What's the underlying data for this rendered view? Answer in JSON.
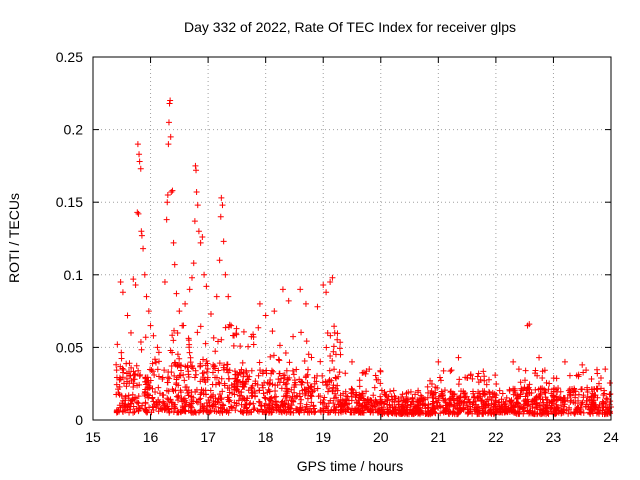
{
  "chart_data": {
    "type": "scatter",
    "title": "Day 332 of 2022, Rate Of TEC Index for receiver glps",
    "xlabel": "GPS time / hours",
    "ylabel": "ROTI / TECUs",
    "xlim": [
      15,
      24
    ],
    "ylim": [
      0,
      0.25
    ],
    "grid": true,
    "marker": "+",
    "color": "#ff0000",
    "x_ticks": [
      {
        "value": 15,
        "label": "15"
      },
      {
        "value": 16,
        "label": "16"
      },
      {
        "value": 17,
        "label": "17"
      },
      {
        "value": 18,
        "label": "18"
      },
      {
        "value": 19,
        "label": "19"
      },
      {
        "value": 20,
        "label": "20"
      },
      {
        "value": 21,
        "label": "21"
      },
      {
        "value": 22,
        "label": "22"
      },
      {
        "value": 23,
        "label": "23"
      },
      {
        "value": 24,
        "label": "24"
      }
    ],
    "y_ticks": [
      {
        "value": 0,
        "label": "0"
      },
      {
        "value": 0.05,
        "label": "0.05"
      },
      {
        "value": 0.1,
        "label": "0.1"
      },
      {
        "value": 0.15,
        "label": "0.15"
      },
      {
        "value": 0.2,
        "label": "0.2"
      },
      {
        "value": 0.25,
        "label": "0.25"
      }
    ],
    "envelope": [
      {
        "t0": 15.4,
        "t1": 16.0,
        "min": 0.005,
        "max": 0.06,
        "dense": 0.035
      },
      {
        "t0": 16.0,
        "t1": 17.4,
        "min": 0.005,
        "max": 0.07,
        "dense": 0.04
      },
      {
        "t0": 17.4,
        "t1": 19.3,
        "min": 0.005,
        "max": 0.065,
        "dense": 0.035
      },
      {
        "t0": 19.3,
        "t1": 20.0,
        "min": 0.005,
        "max": 0.035,
        "dense": 0.02
      },
      {
        "t0": 20.0,
        "t1": 20.8,
        "min": 0.004,
        "max": 0.022,
        "dense": 0.015
      },
      {
        "t0": 20.8,
        "t1": 22.0,
        "min": 0.004,
        "max": 0.035,
        "dense": 0.02
      },
      {
        "t0": 22.0,
        "t1": 22.3,
        "min": 0.005,
        "max": 0.025,
        "dense": 0.015
      },
      {
        "t0": 22.3,
        "t1": 24.0,
        "min": 0.004,
        "max": 0.035,
        "dense": 0.022
      }
    ],
    "outliers": [
      [
        15.48,
        0.095
      ],
      [
        15.52,
        0.088
      ],
      [
        15.6,
        0.072
      ],
      [
        15.66,
        0.06
      ],
      [
        15.7,
        0.097
      ],
      [
        15.74,
        0.093
      ],
      [
        15.77,
        0.143
      ],
      [
        15.79,
        0.142
      ],
      [
        15.78,
        0.19
      ],
      [
        15.8,
        0.183
      ],
      [
        15.81,
        0.178
      ],
      [
        15.83,
        0.173
      ],
      [
        15.84,
        0.13
      ],
      [
        15.85,
        0.127
      ],
      [
        15.87,
        0.118
      ],
      [
        15.9,
        0.1
      ],
      [
        15.93,
        0.085
      ],
      [
        15.97,
        0.075
      ],
      [
        16.0,
        0.065
      ],
      [
        16.05,
        0.058
      ],
      [
        16.12,
        0.05
      ],
      [
        16.25,
        0.095
      ],
      [
        16.28,
        0.138
      ],
      [
        16.29,
        0.15
      ],
      [
        16.3,
        0.155
      ],
      [
        16.31,
        0.19
      ],
      [
        16.32,
        0.205
      ],
      [
        16.33,
        0.218
      ],
      [
        16.34,
        0.22
      ],
      [
        16.35,
        0.195
      ],
      [
        16.36,
        0.157
      ],
      [
        16.38,
        0.158
      ],
      [
        16.4,
        0.122
      ],
      [
        16.42,
        0.107
      ],
      [
        16.45,
        0.087
      ],
      [
        16.5,
        0.075
      ],
      [
        16.55,
        0.065
      ],
      [
        16.6,
        0.08
      ],
      [
        16.68,
        0.09
      ],
      [
        16.72,
        0.098
      ],
      [
        16.75,
        0.108
      ],
      [
        16.77,
        0.137
      ],
      [
        16.78,
        0.175
      ],
      [
        16.79,
        0.172
      ],
      [
        16.8,
        0.157
      ],
      [
        16.82,
        0.148
      ],
      [
        16.84,
        0.13
      ],
      [
        16.87,
        0.122
      ],
      [
        16.9,
        0.126
      ],
      [
        16.93,
        0.1
      ],
      [
        16.97,
        0.092
      ],
      [
        17.05,
        0.073
      ],
      [
        17.15,
        0.085
      ],
      [
        17.2,
        0.11
      ],
      [
        17.22,
        0.14
      ],
      [
        17.23,
        0.153
      ],
      [
        17.25,
        0.148
      ],
      [
        17.27,
        0.123
      ],
      [
        17.3,
        0.1
      ],
      [
        17.35,
        0.085
      ],
      [
        17.4,
        0.065
      ],
      [
        17.9,
        0.08
      ],
      [
        18.0,
        0.072
      ],
      [
        18.15,
        0.075
      ],
      [
        18.3,
        0.09
      ],
      [
        18.4,
        0.082
      ],
      [
        18.6,
        0.09
      ],
      [
        18.7,
        0.08
      ],
      [
        18.9,
        0.078
      ],
      [
        19.0,
        0.093
      ],
      [
        19.05,
        0.088
      ],
      [
        19.12,
        0.095
      ],
      [
        19.16,
        0.098
      ],
      [
        19.2,
        0.06
      ],
      [
        19.3,
        0.045
      ],
      [
        19.5,
        0.04
      ],
      [
        19.8,
        0.035
      ],
      [
        21.0,
        0.04
      ],
      [
        21.35,
        0.043
      ],
      [
        21.7,
        0.032
      ],
      [
        22.3,
        0.04
      ],
      [
        22.4,
        0.035
      ],
      [
        22.55,
        0.065
      ],
      [
        22.58,
        0.066
      ],
      [
        22.75,
        0.043
      ],
      [
        23.2,
        0.04
      ],
      [
        23.5,
        0.038
      ],
      [
        23.9,
        0.035
      ]
    ]
  }
}
